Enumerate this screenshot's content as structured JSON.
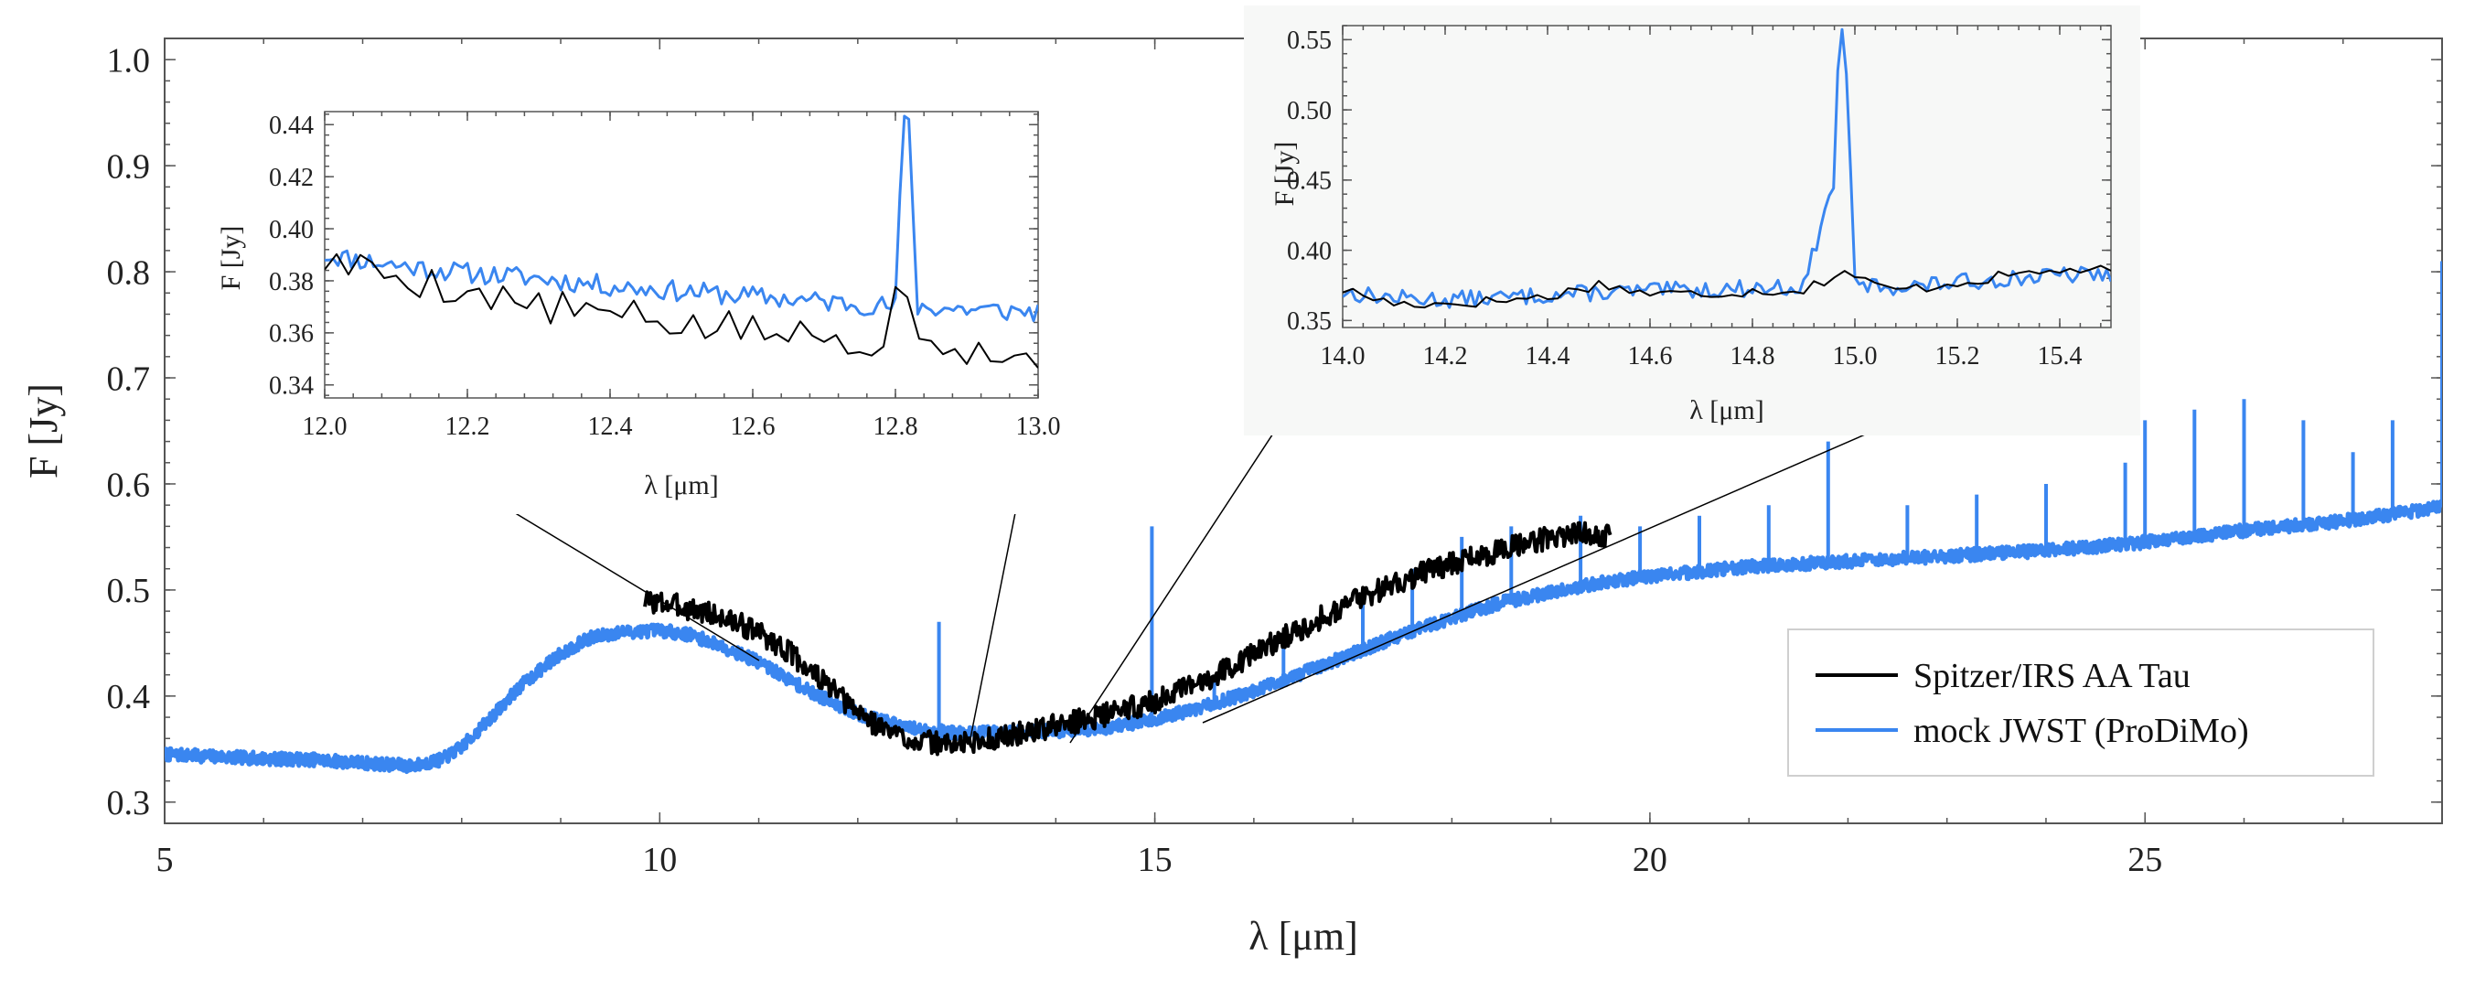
{
  "chart_data": [
    {
      "id": "main",
      "type": "line",
      "title": "",
      "xlabel": "λ [μm]",
      "ylabel": "F [Jy]",
      "xlim": [
        5,
        28
      ],
      "ylim": [
        0.28,
        1.02
      ],
      "xticks": [
        5,
        10,
        15,
        20,
        25
      ],
      "yticks": [
        0.3,
        0.4,
        0.5,
        0.6,
        0.7,
        0.8,
        0.9,
        1.0
      ],
      "yticklabels": [
        "0.3",
        "0.4",
        "0.5",
        "0.6",
        "0.7",
        "0.8",
        "0.9",
        "1.0"
      ],
      "legend_position": "bottom-right",
      "series": [
        {
          "name": "Spitzer/IRS AA Tau",
          "color": "#000000",
          "x": [
            9.85,
            10.0,
            10.2,
            10.5,
            10.8,
            11.0,
            11.3,
            11.6,
            11.9,
            12.2,
            12.5,
            12.8,
            13.0,
            13.2,
            13.5,
            13.8,
            14.0,
            14.3,
            14.6,
            15.0,
            15.4,
            15.8,
            16.2,
            16.6,
            17.0,
            17.4,
            17.8,
            18.2,
            18.6,
            19.0,
            19.3,
            19.6
          ],
          "values": [
            0.49,
            0.488,
            0.485,
            0.478,
            0.468,
            0.46,
            0.442,
            0.418,
            0.392,
            0.372,
            0.36,
            0.355,
            0.355,
            0.357,
            0.362,
            0.368,
            0.372,
            0.378,
            0.385,
            0.395,
            0.41,
            0.43,
            0.45,
            0.47,
            0.49,
            0.505,
            0.52,
            0.53,
            0.54,
            0.55,
            0.555,
            0.55
          ]
        },
        {
          "name": "mock JWST (ProDiMo)",
          "color": "#3a86f0",
          "x": [
            5.0,
            5.5,
            6.0,
            6.5,
            7.0,
            7.5,
            7.8,
            8.0,
            8.3,
            8.6,
            9.0,
            9.3,
            9.6,
            10.0,
            10.3,
            10.6,
            11.0,
            11.5,
            12.0,
            12.5,
            13.0,
            13.5,
            14.0,
            14.5,
            15.0,
            15.5,
            16.0,
            16.5,
            17.0,
            17.5,
            18.0,
            18.5,
            19.0,
            19.5,
            20.0,
            21.0,
            22.0,
            23.0,
            24.0,
            25.0,
            26.0,
            27.0,
            28.0
          ],
          "values": [
            0.345,
            0.343,
            0.341,
            0.34,
            0.337,
            0.334,
            0.34,
            0.352,
            0.38,
            0.41,
            0.44,
            0.455,
            0.46,
            0.462,
            0.458,
            0.448,
            0.432,
            0.405,
            0.383,
            0.37,
            0.365,
            0.366,
            0.367,
            0.37,
            0.378,
            0.39,
            0.405,
            0.422,
            0.44,
            0.458,
            0.474,
            0.488,
            0.498,
            0.507,
            0.513,
            0.522,
            0.527,
            0.532,
            0.537,
            0.545,
            0.556,
            0.565,
            0.578
          ]
        }
      ]
    },
    {
      "id": "inset-left",
      "type": "line",
      "title": "",
      "xlabel": "λ [μm]",
      "ylabel": "F [Jy]",
      "xlim": [
        12.0,
        13.0
      ],
      "ylim": [
        0.335,
        0.445
      ],
      "xticks": [
        12.0,
        12.2,
        12.4,
        12.6,
        12.8,
        13.0
      ],
      "xticklabels": [
        "12.0",
        "12.2",
        "12.4",
        "12.6",
        "12.8",
        "13.0"
      ],
      "yticks": [
        0.34,
        0.36,
        0.38,
        0.4,
        0.42,
        0.44
      ],
      "yticklabels": [
        "0.34",
        "0.36",
        "0.38",
        "0.40",
        "0.42",
        "0.44"
      ],
      "series": [
        {
          "name": "Spitzer/IRS AA Tau",
          "color": "#000000",
          "x": [
            12.0,
            12.1,
            12.2,
            12.3,
            12.4,
            12.5,
            12.6,
            12.7,
            12.78,
            12.81,
            12.84,
            12.9,
            13.0
          ],
          "values": [
            0.388,
            0.382,
            0.376,
            0.37,
            0.367,
            0.363,
            0.361,
            0.358,
            0.357,
            0.382,
            0.358,
            0.355,
            0.348
          ]
        },
        {
          "name": "mock JWST (ProDiMo)",
          "color": "#3a86f0",
          "x": [
            12.0,
            12.1,
            12.2,
            12.3,
            12.4,
            12.5,
            12.6,
            12.7,
            12.8,
            12.81,
            12.82,
            12.83,
            12.9,
            13.0
          ],
          "values": [
            0.39,
            0.386,
            0.383,
            0.381,
            0.378,
            0.376,
            0.374,
            0.372,
            0.37,
            0.44,
            0.44,
            0.37,
            0.369,
            0.368
          ]
        }
      ]
    },
    {
      "id": "inset-right",
      "type": "line",
      "title": "",
      "xlabel": "λ [μm]",
      "ylabel": "F [Jy]",
      "xlim": [
        14.0,
        15.5
      ],
      "ylim": [
        0.345,
        0.56
      ],
      "xticks": [
        14.0,
        14.2,
        14.4,
        14.6,
        14.8,
        15.0,
        15.2,
        15.4
      ],
      "xticklabels": [
        "14.0",
        "14.2",
        "14.4",
        "14.6",
        "14.8",
        "15.0",
        "15.2",
        "15.4"
      ],
      "yticks": [
        0.35,
        0.4,
        0.45,
        0.5,
        0.55
      ],
      "yticklabels": [
        "0.35",
        "0.40",
        "0.45",
        "0.50",
        "0.55"
      ],
      "series": [
        {
          "name": "Spitzer/IRS AA Tau",
          "color": "#000000",
          "x": [
            14.0,
            14.1,
            14.2,
            14.3,
            14.4,
            14.5,
            14.6,
            14.7,
            14.8,
            14.9,
            14.98,
            15.05,
            15.1,
            15.2,
            15.3,
            15.4,
            15.5
          ],
          "values": [
            0.372,
            0.362,
            0.362,
            0.364,
            0.367,
            0.376,
            0.369,
            0.369,
            0.371,
            0.372,
            0.385,
            0.373,
            0.372,
            0.377,
            0.382,
            0.386,
            0.385
          ]
        },
        {
          "name": "mock JWST (ProDiMo)",
          "color": "#3a86f0",
          "x": [
            14.0,
            14.1,
            14.2,
            14.3,
            14.4,
            14.5,
            14.6,
            14.7,
            14.8,
            14.9,
            14.96,
            14.97,
            14.98,
            15.0,
            15.1,
            15.2,
            15.3,
            15.4,
            15.5
          ],
          "values": [
            0.37,
            0.366,
            0.365,
            0.366,
            0.368,
            0.37,
            0.371,
            0.372,
            0.373,
            0.374,
            0.45,
            0.56,
            0.56,
            0.375,
            0.374,
            0.377,
            0.38,
            0.382,
            0.383
          ]
        }
      ]
    }
  ]
}
